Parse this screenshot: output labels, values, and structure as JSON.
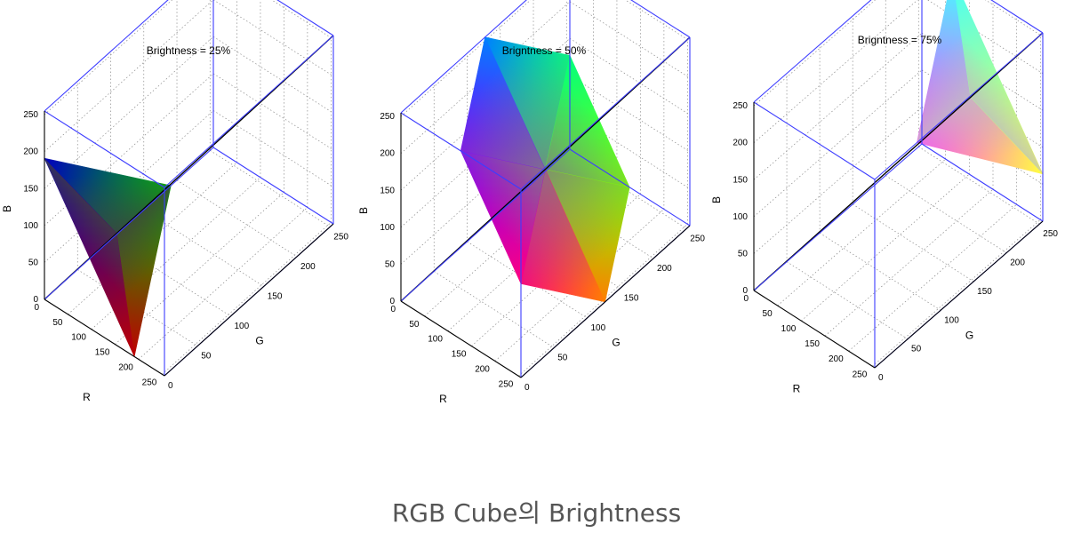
{
  "caption": "RGB Cube의 Brightness",
  "chart_data": [
    {
      "type": "scatter",
      "title": "Brightness = 25%",
      "xlabel": "R",
      "ylabel": "G",
      "zlabel": "B",
      "xlim": [
        0,
        255
      ],
      "ylim": [
        0,
        255
      ],
      "zlim": [
        0,
        255
      ],
      "xticks": [
        "0",
        "50",
        "100",
        "150",
        "200",
        "250"
      ],
      "yticks": [
        "0",
        "50",
        "100",
        "150",
        "200",
        "250"
      ],
      "zticks": [
        "0",
        "50",
        "100",
        "150",
        "200",
        "250"
      ],
      "grid": true,
      "diagonal": [
        [
          0,
          0,
          0
        ],
        [
          255,
          255,
          255
        ]
      ],
      "plane_vertices": [
        [
          0,
          0,
          191
        ],
        [
          0,
          191,
          0
        ],
        [
          191,
          0,
          0
        ]
      ]
    },
    {
      "type": "scatter",
      "title": "Brigntness = 50%",
      "xlabel": "R",
      "ylabel": "G",
      "zlabel": "B",
      "xlim": [
        0,
        255
      ],
      "ylim": [
        0,
        255
      ],
      "zlim": [
        0,
        255
      ],
      "xticks": [
        "0",
        "50",
        "100",
        "150",
        "200",
        "250"
      ],
      "yticks": [
        "0",
        "50",
        "100",
        "150",
        "200",
        "250"
      ],
      "zticks": [
        "0",
        "50",
        "100",
        "150",
        "200",
        "250"
      ],
      "grid": true,
      "diagonal": [
        [
          0,
          0,
          0
        ],
        [
          255,
          255,
          255
        ]
      ],
      "plane_vertices": [
        [
          0,
          127,
          255
        ],
        [
          0,
          255,
          127
        ],
        [
          127,
          255,
          0
        ],
        [
          255,
          127,
          0
        ],
        [
          255,
          0,
          127
        ],
        [
          127,
          0,
          255
        ]
      ]
    },
    {
      "type": "scatter",
      "title": "Brigntness = 75%",
      "xlabel": "R",
      "ylabel": "G",
      "zlabel": "B",
      "xlim": [
        0,
        255
      ],
      "ylim": [
        0,
        255
      ],
      "zlim": [
        0,
        255
      ],
      "xticks": [
        "0",
        "50",
        "100",
        "150",
        "200",
        "250"
      ],
      "yticks": [
        "0",
        "50",
        "100",
        "150",
        "200",
        "250"
      ],
      "zticks": [
        "0",
        "50",
        "100",
        "150",
        "200",
        "250"
      ],
      "grid": true,
      "diagonal": [
        [
          0,
          0,
          0
        ],
        [
          255,
          255,
          255
        ]
      ],
      "plane_vertices": [
        [
          64,
          255,
          255
        ],
        [
          255,
          64,
          255
        ],
        [
          255,
          255,
          64
        ]
      ]
    }
  ]
}
